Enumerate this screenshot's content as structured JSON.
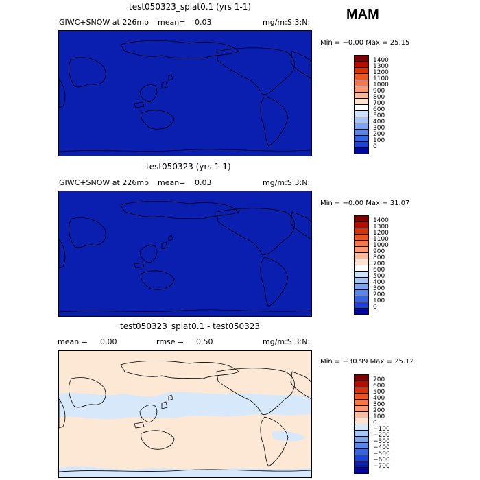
{
  "season": "MAM",
  "panels": [
    {
      "title": "test050323_splat0.1 (yrs 1-1)",
      "left_label": "GIWC+SNOW at 226mb",
      "stat_label": "mean=",
      "stat_value": "0.03",
      "units": "mg/m:S:3:N:",
      "minmax": "Min =   −0.00 Max =   25.15",
      "field_color": "#0a1fb0",
      "colorbar": {
        "labels": [
          "1400",
          "1300",
          "1200",
          "1100",
          "1000",
          "900",
          "800",
          "700",
          "600",
          "500",
          "400",
          "300",
          "200",
          "100",
          "0"
        ],
        "colors": [
          "#7f0000",
          "#b30f00",
          "#d63300",
          "#ee5521",
          "#f7764a",
          "#fb9874",
          "#fdbb9c",
          "#fde2cf",
          "#ffffff",
          "#cfe2fb",
          "#a6c5f5",
          "#7ea5ee",
          "#5a86e8",
          "#3564e0",
          "#1a44d4",
          "#03089c"
        ]
      }
    },
    {
      "title": "test050323 (yrs 1-1)",
      "left_label": "GIWC+SNOW at 226mb",
      "stat_label": "mean=",
      "stat_value": "0.03",
      "units": "mg/m:S:3:N:",
      "minmax": "Min =   −0.00 Max =   31.07",
      "field_color": "#0a1fb0",
      "colorbar": {
        "labels": [
          "1400",
          "1300",
          "1200",
          "1100",
          "1000",
          "900",
          "800",
          "700",
          "600",
          "500",
          "400",
          "300",
          "200",
          "100",
          "0"
        ],
        "colors": [
          "#7f0000",
          "#b30f00",
          "#d63300",
          "#ee5521",
          "#f7764a",
          "#fb9874",
          "#fdbb9c",
          "#fde2cf",
          "#ffffff",
          "#cfe2fb",
          "#a6c5f5",
          "#7ea5ee",
          "#5a86e8",
          "#3564e0",
          "#1a44d4",
          "#03089c"
        ]
      }
    },
    {
      "title": "test050323_splat0.1 - test050323",
      "left_label": "mean =",
      "left_value": "0.00",
      "stat_label": "rmse =",
      "stat_value": "0.50",
      "units": "mg/m:S:3:N:",
      "minmax": "Min =  −30.99 Max =   25.12",
      "field_color": "#fde8d6",
      "anomaly_color": "#d8e8fb",
      "colorbar": {
        "labels": [
          "700",
          "600",
          "500",
          "400",
          "300",
          "200",
          "100",
          "0",
          "−100",
          "−200",
          "−300",
          "−400",
          "−500",
          "−600",
          "−700"
        ],
        "colors": [
          "#7f0000",
          "#b30f00",
          "#d63300",
          "#ee5521",
          "#f7764a",
          "#fb9874",
          "#fdbb9c",
          "#fde2cf",
          "#d8e8fb",
          "#a6c5f5",
          "#7ea5ee",
          "#5a86e8",
          "#3564e0",
          "#1a44d4",
          "#0a1fb0",
          "#03089c"
        ]
      }
    }
  ]
}
